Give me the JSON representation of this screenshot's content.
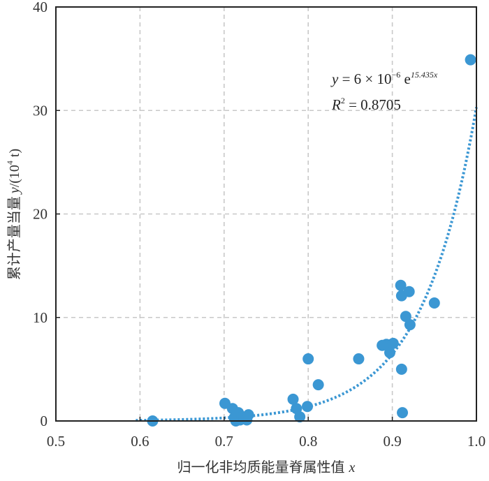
{
  "chart_data": {
    "type": "scatter",
    "xlabel_text": "归一化非均质能量脊属性值",
    "xlabel_var": "x",
    "ylabel_text": "累计产量当量",
    "ylabel_var": "y",
    "ylabel_unit_open": "/(10",
    "ylabel_unit_exp": "4",
    "ylabel_unit_close": " t)",
    "xlim": [
      0.5,
      1.0
    ],
    "ylim": [
      0,
      40
    ],
    "x_ticks": [
      0.5,
      0.6,
      0.7,
      0.8,
      0.9,
      1.0
    ],
    "x_tick_labels": [
      "0.5",
      "0.6",
      "0.7",
      "0.8",
      "0.9",
      "1.0"
    ],
    "y_ticks": [
      0,
      10,
      20,
      30,
      40
    ],
    "y_tick_labels": [
      "0",
      "10",
      "20",
      "30",
      "40"
    ],
    "grid": true,
    "point_color": "#3b97d3",
    "fit_color": "#3b97d3",
    "points": [
      {
        "x": 0.615,
        "y": 0.0
      },
      {
        "x": 0.701,
        "y": 1.7
      },
      {
        "x": 0.71,
        "y": 1.2
      },
      {
        "x": 0.712,
        "y": 0.3
      },
      {
        "x": 0.714,
        "y": 0.0
      },
      {
        "x": 0.717,
        "y": 0.8
      },
      {
        "x": 0.719,
        "y": 0.1
      },
      {
        "x": 0.721,
        "y": 0.4
      },
      {
        "x": 0.724,
        "y": 0.2
      },
      {
        "x": 0.727,
        "y": 0.1
      },
      {
        "x": 0.729,
        "y": 0.6
      },
      {
        "x": 0.782,
        "y": 2.1
      },
      {
        "x": 0.786,
        "y": 1.2
      },
      {
        "x": 0.79,
        "y": 0.4
      },
      {
        "x": 0.799,
        "y": 1.4
      },
      {
        "x": 0.8,
        "y": 6.0
      },
      {
        "x": 0.812,
        "y": 3.5
      },
      {
        "x": 0.86,
        "y": 6.0
      },
      {
        "x": 0.888,
        "y": 7.3
      },
      {
        "x": 0.893,
        "y": 7.4
      },
      {
        "x": 0.897,
        "y": 6.6
      },
      {
        "x": 0.901,
        "y": 7.5
      },
      {
        "x": 0.91,
        "y": 13.1
      },
      {
        "x": 0.911,
        "y": 12.1
      },
      {
        "x": 0.911,
        "y": 5.0
      },
      {
        "x": 0.912,
        "y": 0.8
      },
      {
        "x": 0.916,
        "y": 10.1
      },
      {
        "x": 0.92,
        "y": 12.5
      },
      {
        "x": 0.921,
        "y": 9.3
      },
      {
        "x": 0.95,
        "y": 11.4
      },
      {
        "x": 0.993,
        "y": 34.9
      }
    ],
    "fit": {
      "a": 6e-06,
      "b": 15.435,
      "x_start": 0.595,
      "x_end": 1.0
    },
    "equation": {
      "y_var": "y",
      "equals": " = 6 × 10",
      "exp1": "−6",
      "e": " e",
      "exp2": "15.435x",
      "r_var": "R",
      "r_exp": "2",
      "r_value": " = 0.8705"
    }
  }
}
